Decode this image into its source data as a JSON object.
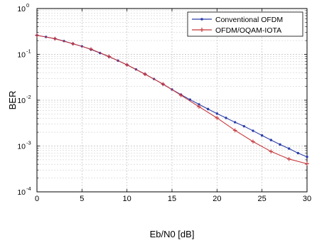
{
  "chart_data": {
    "type": "line",
    "xlabel": "Eb/N0 [dB]",
    "ylabel": "BER",
    "xlim": [
      0,
      30
    ],
    "ylim": [
      0.0001,
      1
    ],
    "yscale": "log",
    "grid": true,
    "legend_position": "top-right",
    "x_ticks": [
      0,
      5,
      10,
      15,
      20,
      25,
      30
    ],
    "x_tick_labels": [
      "0",
      "5",
      "10",
      "15",
      "20",
      "25",
      "30"
    ],
    "y_ticks": [
      0.0001,
      0.001,
      0.01,
      0.1,
      1
    ],
    "y_tick_labels": [
      {
        "base": "10",
        "exp": "-4"
      },
      {
        "base": "10",
        "exp": "-3"
      },
      {
        "base": "10",
        "exp": "-2"
      },
      {
        "base": "10",
        "exp": "-1"
      },
      {
        "base": "10",
        "exp": "0"
      }
    ],
    "x": [
      0,
      2,
      4,
      6,
      8,
      10,
      12,
      14,
      16,
      18,
      20,
      22,
      24,
      26,
      28,
      30
    ],
    "series": [
      {
        "name": "Conventional OFDM",
        "color": "#2c3ea8",
        "marker": "dot",
        "x": [
          0,
          1,
          2,
          3,
          4,
          5,
          6,
          7,
          8,
          9,
          10,
          11,
          12,
          13,
          14,
          15,
          16,
          17,
          18,
          19,
          20,
          21,
          22,
          23,
          24,
          25,
          26,
          27,
          28,
          29,
          30
        ],
        "values": [
          0.26,
          0.24,
          0.22,
          0.195,
          0.17,
          0.15,
          0.128,
          0.107,
          0.089,
          0.073,
          0.059,
          0.047,
          0.037,
          0.029,
          0.0223,
          0.0171,
          0.0132,
          0.0103,
          0.0081,
          0.0064,
          0.0051,
          0.0041,
          0.0033,
          0.0027,
          0.00215,
          0.0017,
          0.00135,
          0.00108,
          0.00088,
          0.0007,
          0.00058
        ]
      },
      {
        "name": "OFDM/OQAM-IOTA",
        "color": "#c8383c",
        "marker": "plus",
        "x": [
          0,
          2,
          4,
          6,
          8,
          10,
          12,
          14,
          16,
          18,
          20,
          22,
          24,
          26,
          28,
          30
        ],
        "values": [
          0.26,
          0.22,
          0.17,
          0.13,
          0.09,
          0.059,
          0.037,
          0.0225,
          0.0128,
          0.0072,
          0.0041,
          0.0022,
          0.00125,
          0.00076,
          0.00052,
          0.00041
        ]
      }
    ]
  }
}
